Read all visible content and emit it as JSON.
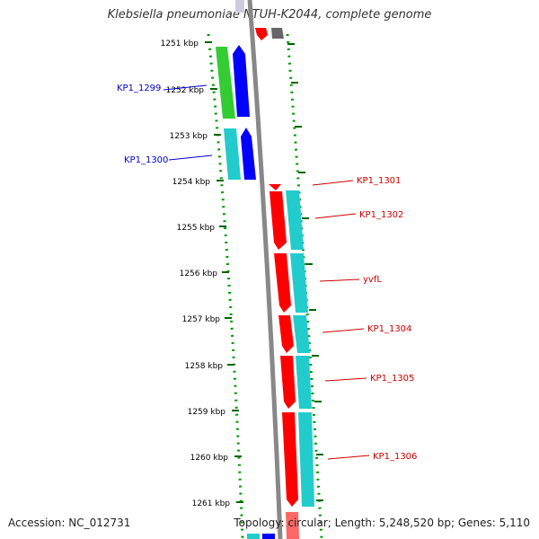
{
  "title": "Klebsiella pneumoniae NTUH-K2044, complete genome",
  "accession": "Accession: NC_012731",
  "topology": "Topology: circular; Length: 5,248,520 bp; Genes: 5,110",
  "colors": {
    "forward_red": "#ff0000",
    "blue": "#0000ff",
    "green": "#33cc33",
    "cyan": "#22cccc",
    "gray": "#888888",
    "tick_green": "#006600",
    "label_blue": "#0000cc",
    "label_red": "#cc0000"
  },
  "ticks": [
    {
      "label": "1251 kbp"
    },
    {
      "label": "1252 kbp"
    },
    {
      "label": "1253 kbp"
    },
    {
      "label": "1254 kbp"
    },
    {
      "label": "1255 kbp"
    },
    {
      "label": "1256 kbp"
    },
    {
      "label": "1257 kbp"
    },
    {
      "label": "1258 kbp"
    },
    {
      "label": "1259 kbp"
    },
    {
      "label": "1260 kbp"
    },
    {
      "label": "1261 kbp"
    }
  ],
  "gene_labels": [
    {
      "name": "KP1_1299",
      "side": "left"
    },
    {
      "name": "KP1_1300",
      "side": "left"
    },
    {
      "name": "KP1_1301",
      "side": "right"
    },
    {
      "name": "KP1_1302",
      "side": "right"
    },
    {
      "name": "yvfL",
      "side": "right"
    },
    {
      "name": "KP1_1304",
      "side": "right"
    },
    {
      "name": "KP1_1305",
      "side": "right"
    },
    {
      "name": "KP1_1306",
      "side": "right"
    }
  ]
}
